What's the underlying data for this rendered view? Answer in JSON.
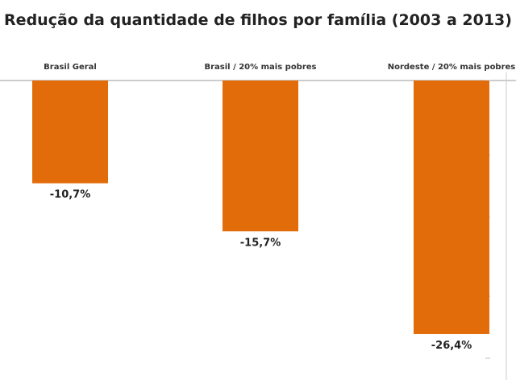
{
  "chart_data": {
    "type": "bar",
    "title": "Redução da quantidade de filhos por família (2003 a 2013)",
    "categories": [
      "Brasil Geral",
      "Brasil / 20% mais pobres",
      "Nordeste / 20% mais pobres"
    ],
    "values": [
      -10.7,
      -15.7,
      -26.4
    ],
    "value_labels": [
      "-10,7%",
      "-15,7%",
      "-26,4%"
    ],
    "xlabel": "",
    "ylabel": "",
    "ylim": [
      -30,
      0
    ],
    "grid": false,
    "legend": "none",
    "colors": {
      "bar": "#E36C0A",
      "axis": "#999999",
      "text": "#222222"
    }
  }
}
